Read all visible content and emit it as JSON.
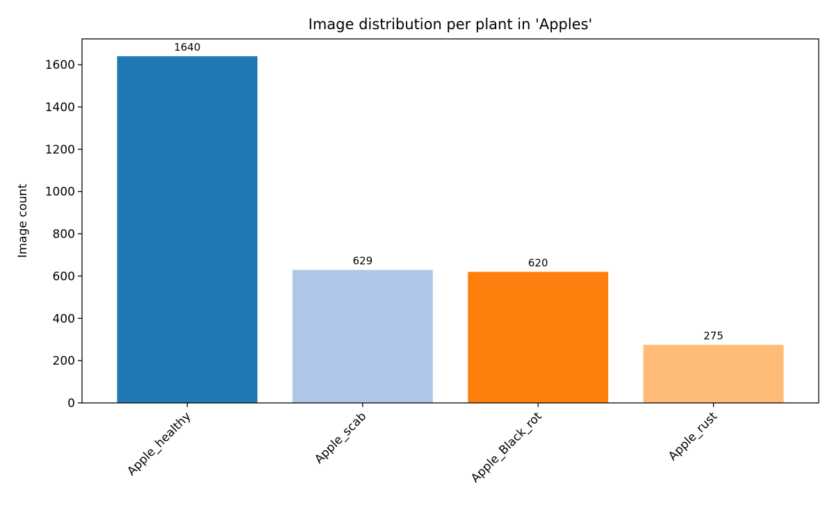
{
  "chart_data": {
    "type": "bar",
    "title": "Image distribution per plant in 'Apples'",
    "xlabel": "",
    "ylabel": "Image count",
    "categories": [
      "Apple_healthy",
      "Apple_scab",
      "Apple_Black_rot",
      "Apple_rust"
    ],
    "values": [
      1640,
      629,
      620,
      275
    ],
    "data_labels": [
      "1640",
      "629",
      "620",
      "275"
    ],
    "colors": [
      "#1f77b4",
      "#aec7e8",
      "#ff7f0e",
      "#ffbb78"
    ],
    "ylim": [
      0,
      1722
    ],
    "yticks": [
      0,
      200,
      400,
      600,
      800,
      1000,
      1200,
      1400,
      1600
    ],
    "ytick_labels": [
      "0",
      "200",
      "400",
      "600",
      "800",
      "1000",
      "1200",
      "1400",
      "1600"
    ],
    "grid": false,
    "xtick_rotation": 45
  }
}
